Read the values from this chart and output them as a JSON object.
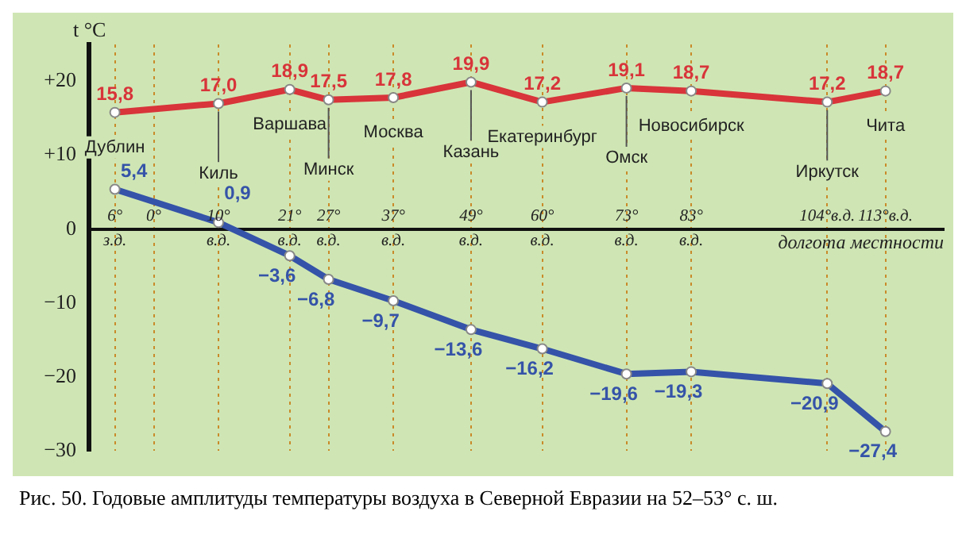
{
  "chart_data": {
    "type": "line",
    "ylabel": "t °C",
    "xlabel": "долгота местности",
    "x": [
      -6,
      10,
      21,
      27,
      37,
      49,
      60,
      73,
      83,
      104,
      113
    ],
    "series": [
      {
        "color": "#d8343a",
        "values": [
          15.8,
          17.0,
          18.9,
          17.5,
          17.8,
          19.9,
          17.2,
          19.1,
          18.7,
          17.2,
          18.7
        ],
        "value_labels": [
          "15,8",
          "17,0",
          "18,9",
          "17,5",
          "17,8",
          "19,9",
          "17,2",
          "19,1",
          "18,7",
          "17,2",
          "18,7"
        ]
      },
      {
        "color": "#3553a8",
        "values": [
          5.4,
          0.9,
          -3.6,
          -6.8,
          -9.7,
          -13.6,
          -16.2,
          -19.6,
          -19.3,
          -20.9,
          -27.4
        ],
        "value_labels": [
          "5,4",
          "0,9",
          "−3,6",
          "−6,8",
          "−9,7",
          "−13,6",
          "−16,2",
          "−19,6",
          "−19,3",
          "−20,9",
          "−27,4"
        ]
      }
    ],
    "xlim": [
      -10,
      122
    ],
    "xticks": [
      {
        "value": -6,
        "label": "6° з.д."
      },
      {
        "value": 0,
        "label": "0°"
      },
      {
        "value": 10,
        "label": "10° в.д."
      },
      {
        "value": 21,
        "label": "21° в.д."
      },
      {
        "value": 27,
        "label": "27° в.д."
      },
      {
        "value": 37,
        "label": "37° в.д."
      },
      {
        "value": 49,
        "label": "49° в.д."
      },
      {
        "value": 60,
        "label": "60° в.д."
      },
      {
        "value": 73,
        "label": "73° в.д."
      },
      {
        "value": 83,
        "label": "83° в.д."
      },
      {
        "value": 104,
        "label": "104°в.д."
      },
      {
        "value": 113,
        "label": "113°в.д."
      }
    ],
    "ylim": [
      -30,
      25
    ],
    "yticks": [
      {
        "value": -30,
        "label": "−30"
      },
      {
        "value": -20,
        "label": "−20"
      },
      {
        "value": -10,
        "label": "−10"
      },
      {
        "value": 0,
        "label": "0"
      },
      {
        "value": 10,
        "label": "+10"
      },
      {
        "value": 20,
        "label": "+20"
      }
    ],
    "grid": "x",
    "marker": "circle",
    "line_style": "solid",
    "legend": false,
    "annotations": [
      {
        "text": "Дублин",
        "x": -6,
        "y": 15.8
      },
      {
        "text": "Киль",
        "x": 10,
        "y": 17.0
      },
      {
        "text": "Варшава",
        "x": 21,
        "y": 18.9
      },
      {
        "text": "Минск",
        "x": 27,
        "y": 17.5
      },
      {
        "text": "Москва",
        "x": 37,
        "y": 17.8
      },
      {
        "text": "Казань",
        "x": 49,
        "y": 19.9
      },
      {
        "text": "Екатеринбург",
        "x": 60,
        "y": 17.2
      },
      {
        "text": "Омск",
        "x": 73,
        "y": 19.1
      },
      {
        "text": "Новосибирск",
        "x": 83,
        "y": 18.7
      },
      {
        "text": "Иркутск",
        "x": 104,
        "y": 17.2
      },
      {
        "text": "Чита",
        "x": 113,
        "y": 18.7
      },
      "Рис. 50. Годовые амплитуды температуры воздуха в Северной Евразии на 52–53° с. ш."
    ]
  }
}
